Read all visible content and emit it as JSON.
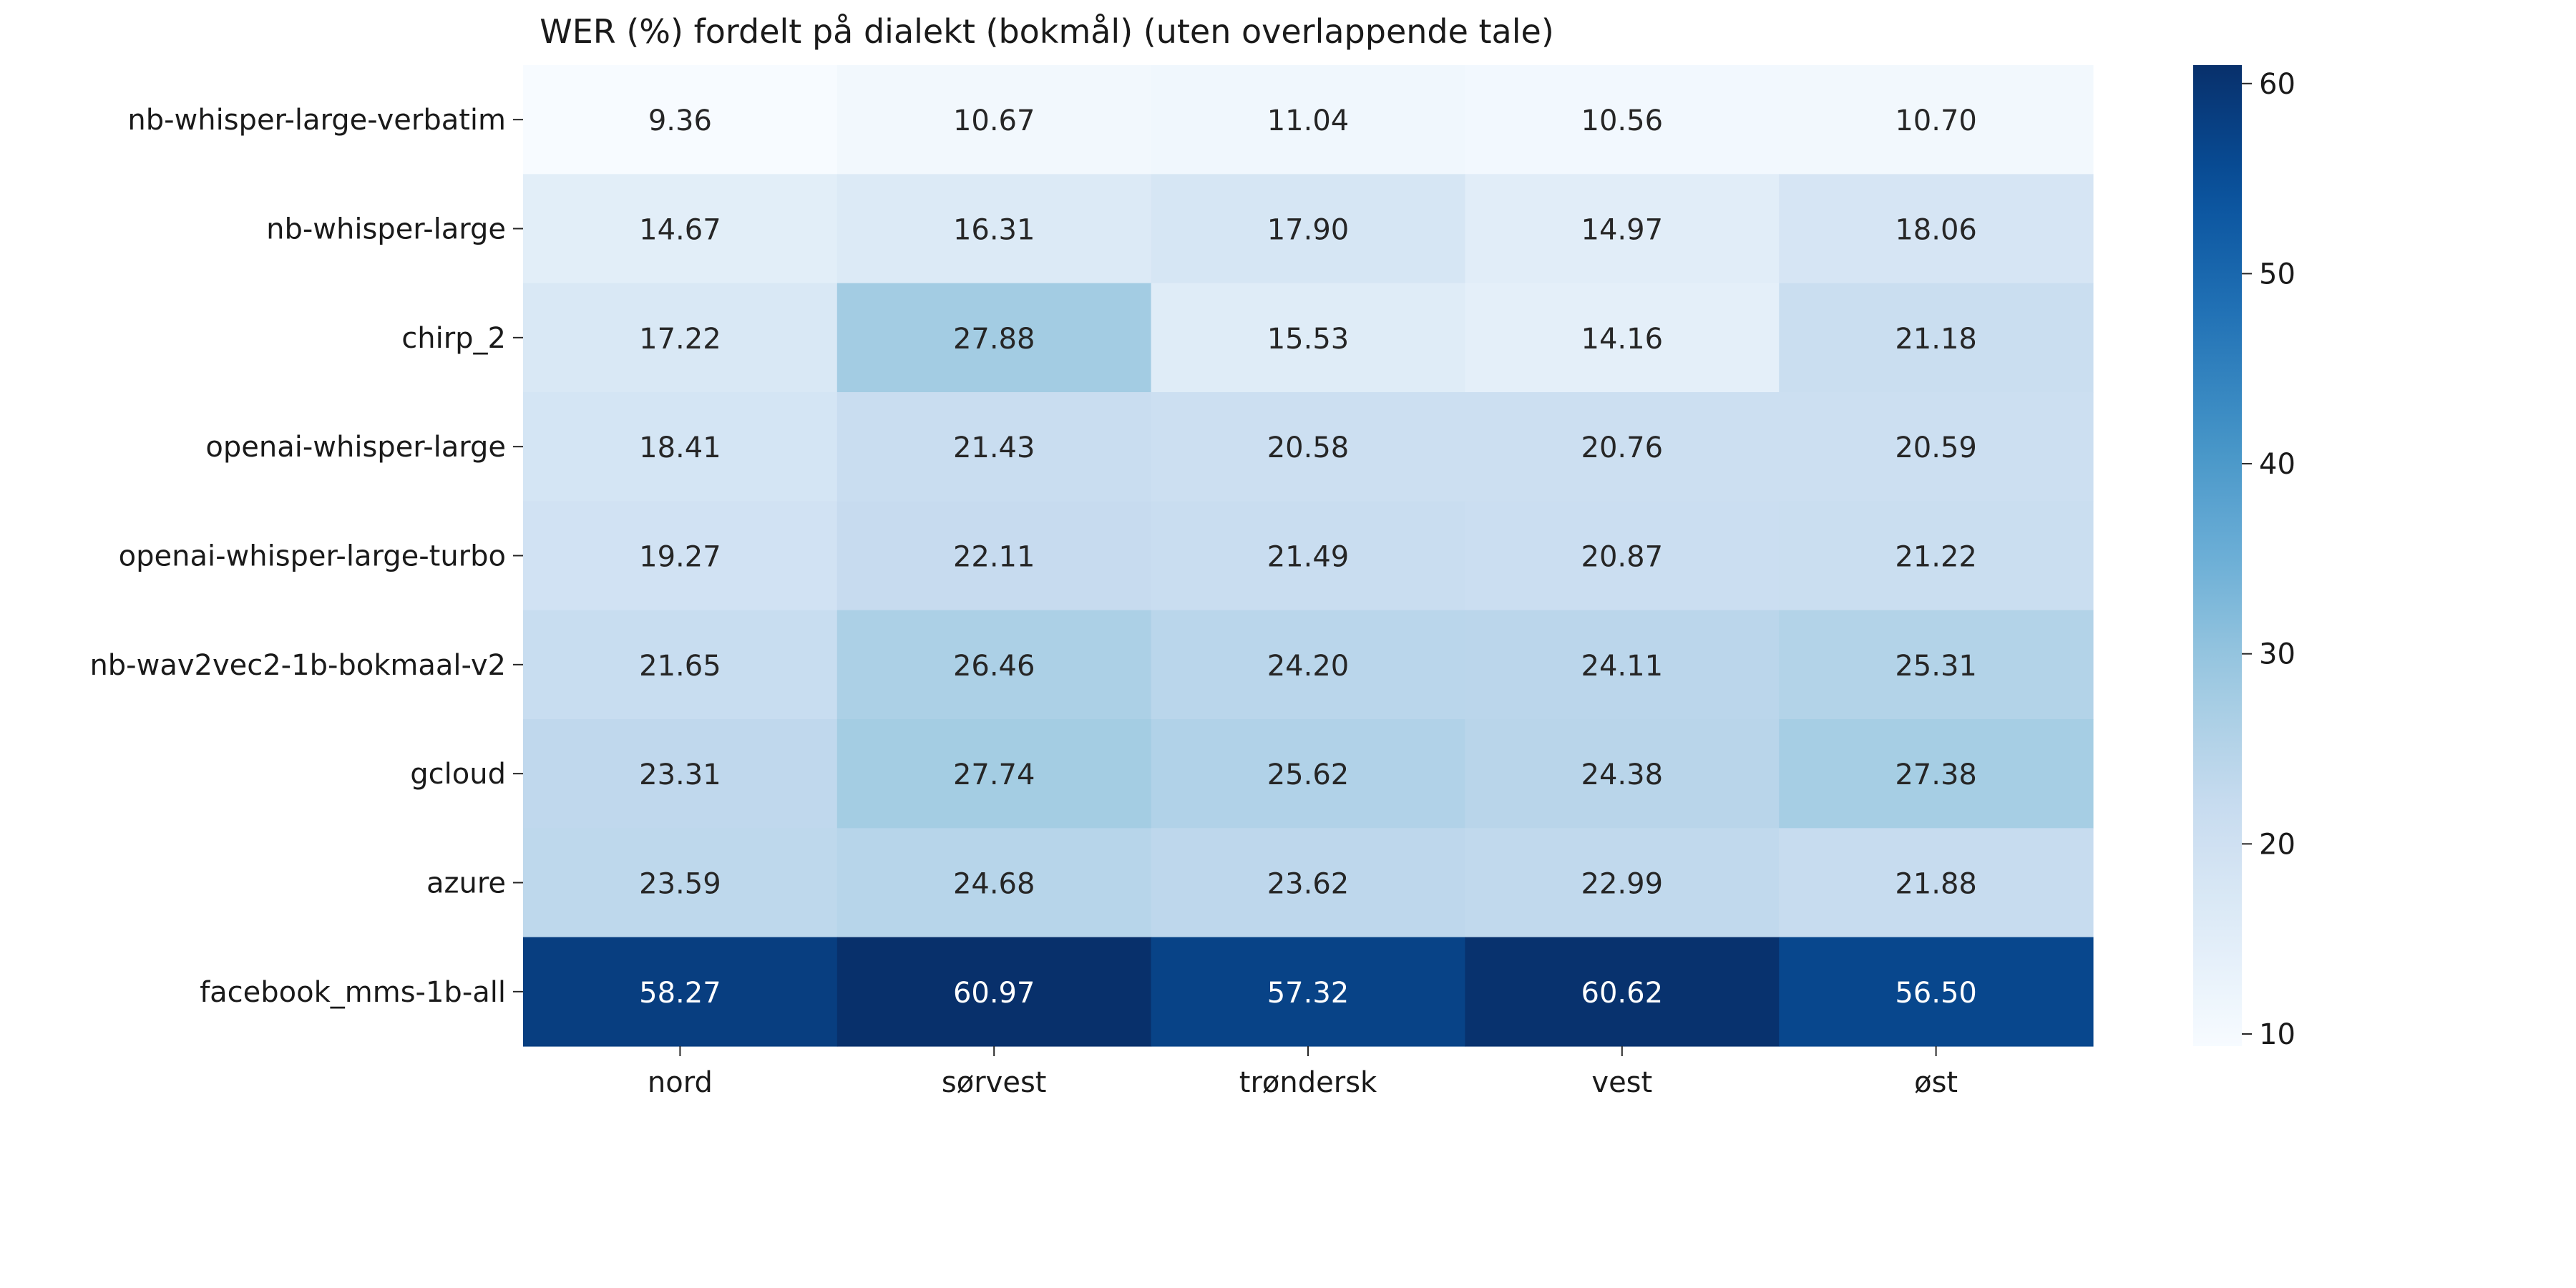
{
  "chart_data": {
    "type": "heatmap",
    "title": "WER (%) fordelt på dialekt (bokmål) (uten overlappende tale)",
    "xlabel": "",
    "ylabel": "",
    "columns": [
      "nord",
      "sørvest",
      "trøndersk",
      "vest",
      "øst"
    ],
    "rows": [
      "nb-whisper-large-verbatim",
      "nb-whisper-large",
      "chirp_2",
      "openai-whisper-large",
      "openai-whisper-large-turbo",
      "nb-wav2vec2-1b-bokmaal-v2",
      "gcloud",
      "azure",
      "facebook_mms-1b-all"
    ],
    "values": [
      [
        9.36,
        10.67,
        11.04,
        10.56,
        10.7
      ],
      [
        14.67,
        16.31,
        17.9,
        14.97,
        18.06
      ],
      [
        17.22,
        27.88,
        15.53,
        14.16,
        21.18
      ],
      [
        18.41,
        21.43,
        20.58,
        20.76,
        20.59
      ],
      [
        19.27,
        22.11,
        21.49,
        20.87,
        21.22
      ],
      [
        21.65,
        26.46,
        24.2,
        24.11,
        25.31
      ],
      [
        23.31,
        27.74,
        25.62,
        24.38,
        27.38
      ],
      [
        23.59,
        24.68,
        23.62,
        22.99,
        21.88
      ],
      [
        58.27,
        60.97,
        57.32,
        60.62,
        56.5
      ]
    ],
    "value_labels": [
      [
        "9.36",
        "10.67",
        "11.04",
        "10.56",
        "10.70"
      ],
      [
        "14.67",
        "16.31",
        "17.90",
        "14.97",
        "18.06"
      ],
      [
        "17.22",
        "27.88",
        "15.53",
        "14.16",
        "21.18"
      ],
      [
        "18.41",
        "21.43",
        "20.58",
        "20.76",
        "20.59"
      ],
      [
        "19.27",
        "22.11",
        "21.49",
        "20.87",
        "21.22"
      ],
      [
        "21.65",
        "26.46",
        "24.20",
        "24.11",
        "25.31"
      ],
      [
        "23.31",
        "27.74",
        "25.62",
        "24.38",
        "27.38"
      ],
      [
        "23.59",
        "24.68",
        "23.62",
        "22.99",
        "21.88"
      ],
      [
        "58.27",
        "60.97",
        "57.32",
        "60.62",
        "56.50"
      ]
    ],
    "colormap": "Blues",
    "color_range": [
      9.36,
      60.97
    ],
    "colorbar_ticks": [
      10,
      20,
      30,
      40,
      50,
      60
    ],
    "colorbar_tick_labels": [
      "10",
      "20",
      "30",
      "40",
      "50",
      "60"
    ],
    "colorbar_position": "right",
    "grid": false,
    "colors": {
      "low": "#f7fbff",
      "high": "#08306b",
      "text_dark": "#262626",
      "text_light": "#ffffff"
    }
  }
}
